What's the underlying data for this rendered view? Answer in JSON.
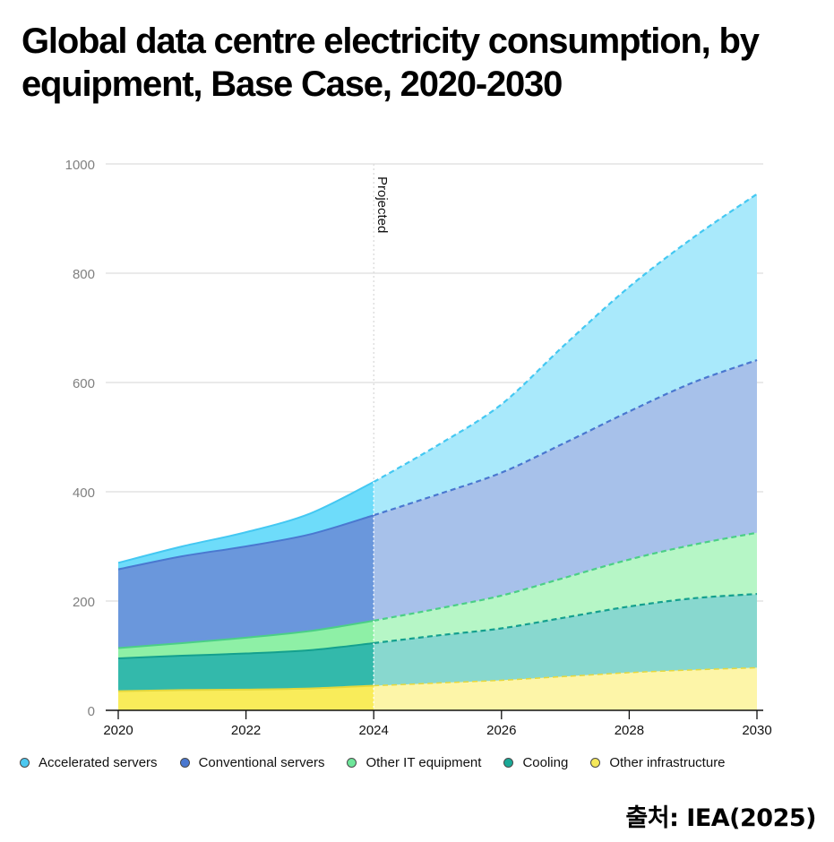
{
  "header": {
    "title": "Global data centre electricity consumption, by equipment, Base Case, 2020-2030"
  },
  "source": "출처: IEA(2025)",
  "chart_data": {
    "type": "area",
    "stacked": true,
    "title": "Global data centre electricity consumption, by equipment, Base Case, 2020-2030",
    "xlabel": "",
    "ylabel": "",
    "x": [
      2020,
      2021,
      2022,
      2023,
      2024,
      2025,
      2026,
      2027,
      2028,
      2029,
      2030
    ],
    "x_ticks": [
      2020,
      2022,
      2024,
      2026,
      2028,
      2030
    ],
    "x_tick_labels": [
      "2020",
      "2022",
      "2024",
      "2026",
      "2028",
      "2030"
    ],
    "ylim": [
      0,
      1000
    ],
    "y_ticks": [
      0,
      200,
      400,
      600,
      800,
      1000
    ],
    "y_tick_labels": [
      "0",
      "200",
      "400",
      "600",
      "800",
      "1000"
    ],
    "grid": true,
    "legend_position": "bottom",
    "annotation": {
      "label": "Projected",
      "x": 2024
    },
    "projected_from": 2024,
    "series": [
      {
        "name": "Other infrastructure",
        "color": "#f9ec5a",
        "projected_color": "#fdf5a8",
        "line_color": "#e6d83c",
        "values": [
          35,
          37,
          38,
          40,
          45,
          50,
          55,
          62,
          69,
          74,
          78
        ]
      },
      {
        "name": "Cooling",
        "color": "#33b9ab",
        "projected_color": "#88d8cf",
        "line_color": "#14a08e",
        "values": [
          60,
          63,
          66,
          70,
          78,
          87,
          95,
          108,
          121,
          131,
          135
        ]
      },
      {
        "name": "Other IT equipment",
        "color": "#8ef0a6",
        "projected_color": "#b6f6c6",
        "line_color": "#4bcf86",
        "values": [
          19,
          23,
          29,
          35,
          41,
          49,
          60,
          73,
          86,
          98,
          112
        ]
      },
      {
        "name": "Conventional servers",
        "color": "#6a97dc",
        "projected_color": "#a7c1ea",
        "line_color": "#4a78d0",
        "values": [
          144,
          159,
          167,
          177,
          193,
          209,
          225,
          247,
          271,
          297,
          316
        ]
      },
      {
        "name": "Accelerated servers",
        "color": "#6edcfa",
        "projected_color": "#a9e9fb",
        "line_color": "#44c8f2",
        "values": [
          12,
          18,
          26,
          38,
          61,
          90,
          125,
          180,
          228,
          265,
          304
        ]
      }
    ],
    "legend_order": [
      "Accelerated servers",
      "Conventional servers",
      "Other IT equipment",
      "Cooling",
      "Other infrastructure"
    ],
    "legend_colors": [
      "#4cc8f0",
      "#4a78d0",
      "#6ee69a",
      "#1aa896",
      "#f5e85a"
    ]
  }
}
